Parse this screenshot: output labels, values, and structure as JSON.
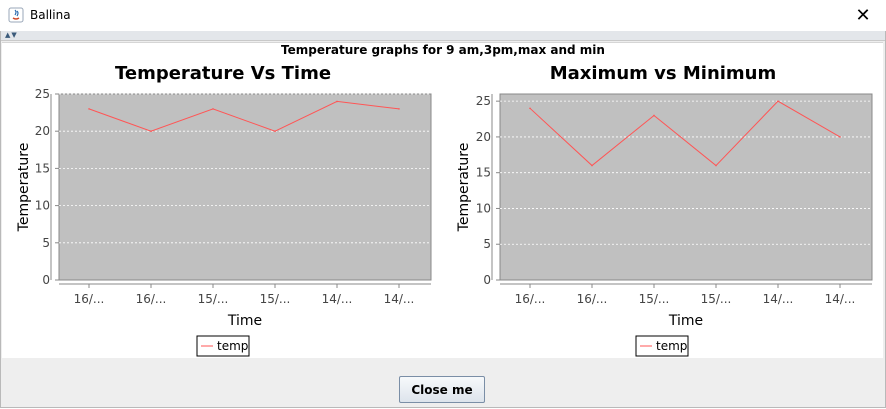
{
  "window": {
    "title": "Ballina",
    "close_glyph": "✕",
    "icon": "java-icon"
  },
  "panel": {
    "title": "Temperature graphs for 9 am,3pm,max and min"
  },
  "footer": {
    "close_button": "Close me"
  },
  "colors": {
    "plot_bg": "#c0c0c0",
    "series": "#ff5555",
    "grid": "#ffffff"
  },
  "chart_data": [
    {
      "type": "line",
      "title": "Temperature Vs Time",
      "xlabel": "Time",
      "ylabel": "Temperature",
      "categories": [
        "16/...",
        "16/...",
        "15/...",
        "15/...",
        "14/...",
        "14/..."
      ],
      "series": [
        {
          "name": "temp",
          "values": [
            23,
            20,
            23,
            20,
            24,
            23
          ]
        }
      ],
      "ylim": [
        0,
        25
      ],
      "yticks": [
        0,
        5,
        10,
        15,
        20,
        25
      ],
      "grid": true,
      "legend": "bottom"
    },
    {
      "type": "line",
      "title": "Maximum vs Minimum",
      "xlabel": "Time",
      "ylabel": "Temperature",
      "categories": [
        "16/...",
        "16/...",
        "15/...",
        "15/...",
        "14/...",
        "14/..."
      ],
      "series": [
        {
          "name": "temp",
          "values": [
            24,
            16,
            23,
            16,
            25,
            20
          ]
        }
      ],
      "ylim": [
        0,
        26
      ],
      "yticks": [
        0,
        5,
        10,
        15,
        20,
        25
      ],
      "grid": true,
      "legend": "bottom"
    }
  ]
}
